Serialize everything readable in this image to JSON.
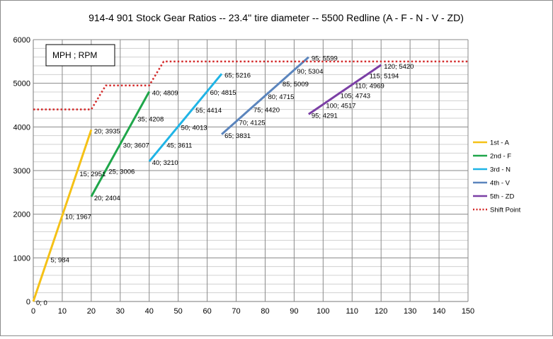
{
  "chart_data": {
    "type": "line",
    "title": "914-4 901 Stock Gear Ratios -- 23.4'' tire diameter -- 5500 Redline   (A - F - N - V - ZD)",
    "annotation": "MPH ; RPM",
    "xlim": [
      0,
      150
    ],
    "ylim": [
      0,
      6000
    ],
    "x_ticks": [
      "0",
      "10",
      "20",
      "30",
      "40",
      "50",
      "60",
      "70",
      "80",
      "90",
      "100",
      "110",
      "120",
      "130",
      "140",
      "150"
    ],
    "y_ticks": [
      "0",
      "1000",
      "2000",
      "3000",
      "4000",
      "5000",
      "6000"
    ],
    "grid": true,
    "legend_position": "right",
    "series": [
      {
        "name": "1st - A",
        "color": "#f5c116",
        "style": "solid",
        "points": [
          [
            0,
            0
          ],
          [
            5,
            984
          ],
          [
            10,
            1967
          ],
          [
            15,
            2951
          ],
          [
            20,
            3935
          ]
        ],
        "labels": [
          "0; 0",
          "5; 984",
          "10; 1967",
          "15; 2951",
          "20; 3935"
        ]
      },
      {
        "name": "2nd - F",
        "color": "#1fa64a",
        "style": "solid",
        "points": [
          [
            20,
            2404
          ],
          [
            25,
            3006
          ],
          [
            30,
            3607
          ],
          [
            35,
            4208
          ],
          [
            40,
            4809
          ]
        ],
        "labels": [
          "20; 2404",
          "25; 3006",
          "30; 3607",
          "35; 4208",
          "40; 4809"
        ]
      },
      {
        "name": "3rd - N",
        "color": "#1fb4e6",
        "style": "solid",
        "points": [
          [
            40,
            3210
          ],
          [
            45,
            3611
          ],
          [
            50,
            4013
          ],
          [
            55,
            4414
          ],
          [
            60,
            4815
          ],
          [
            65,
            5216
          ]
        ],
        "labels": [
          "40; 3210",
          "45; 3611",
          "50; 4013",
          "55; 4414",
          "60; 4815",
          "65; 5216"
        ]
      },
      {
        "name": "4th - V",
        "color": "#5b85bd",
        "style": "solid",
        "points": [
          [
            65,
            3831
          ],
          [
            70,
            4125
          ],
          [
            75,
            4420
          ],
          [
            80,
            4715
          ],
          [
            85,
            5009
          ],
          [
            90,
            5304
          ],
          [
            95,
            5599
          ]
        ],
        "labels": [
          "65; 3831",
          "70; 4125",
          "75; 4420",
          "80; 4715",
          "85; 5009",
          "90; 5304",
          "95; 5599"
        ]
      },
      {
        "name": "5th - ZD",
        "color": "#7b3fa5",
        "style": "solid",
        "points": [
          [
            95,
            4291
          ],
          [
            100,
            4517
          ],
          [
            105,
            4743
          ],
          [
            110,
            4969
          ],
          [
            115,
            5194
          ],
          [
            120,
            5420
          ]
        ],
        "labels": [
          "95; 4291",
          "100; 4517",
          "105; 4743",
          "110; 4969",
          "115; 5194",
          "120; 5420"
        ]
      },
      {
        "name": "Shift Point",
        "color": "#d42b2b",
        "style": "dotted",
        "points": [
          [
            0,
            4400
          ],
          [
            20,
            4400
          ],
          [
            25,
            4950
          ],
          [
            40,
            4950
          ],
          [
            45,
            5500
          ],
          [
            150,
            5500
          ]
        ],
        "labels": []
      }
    ]
  }
}
